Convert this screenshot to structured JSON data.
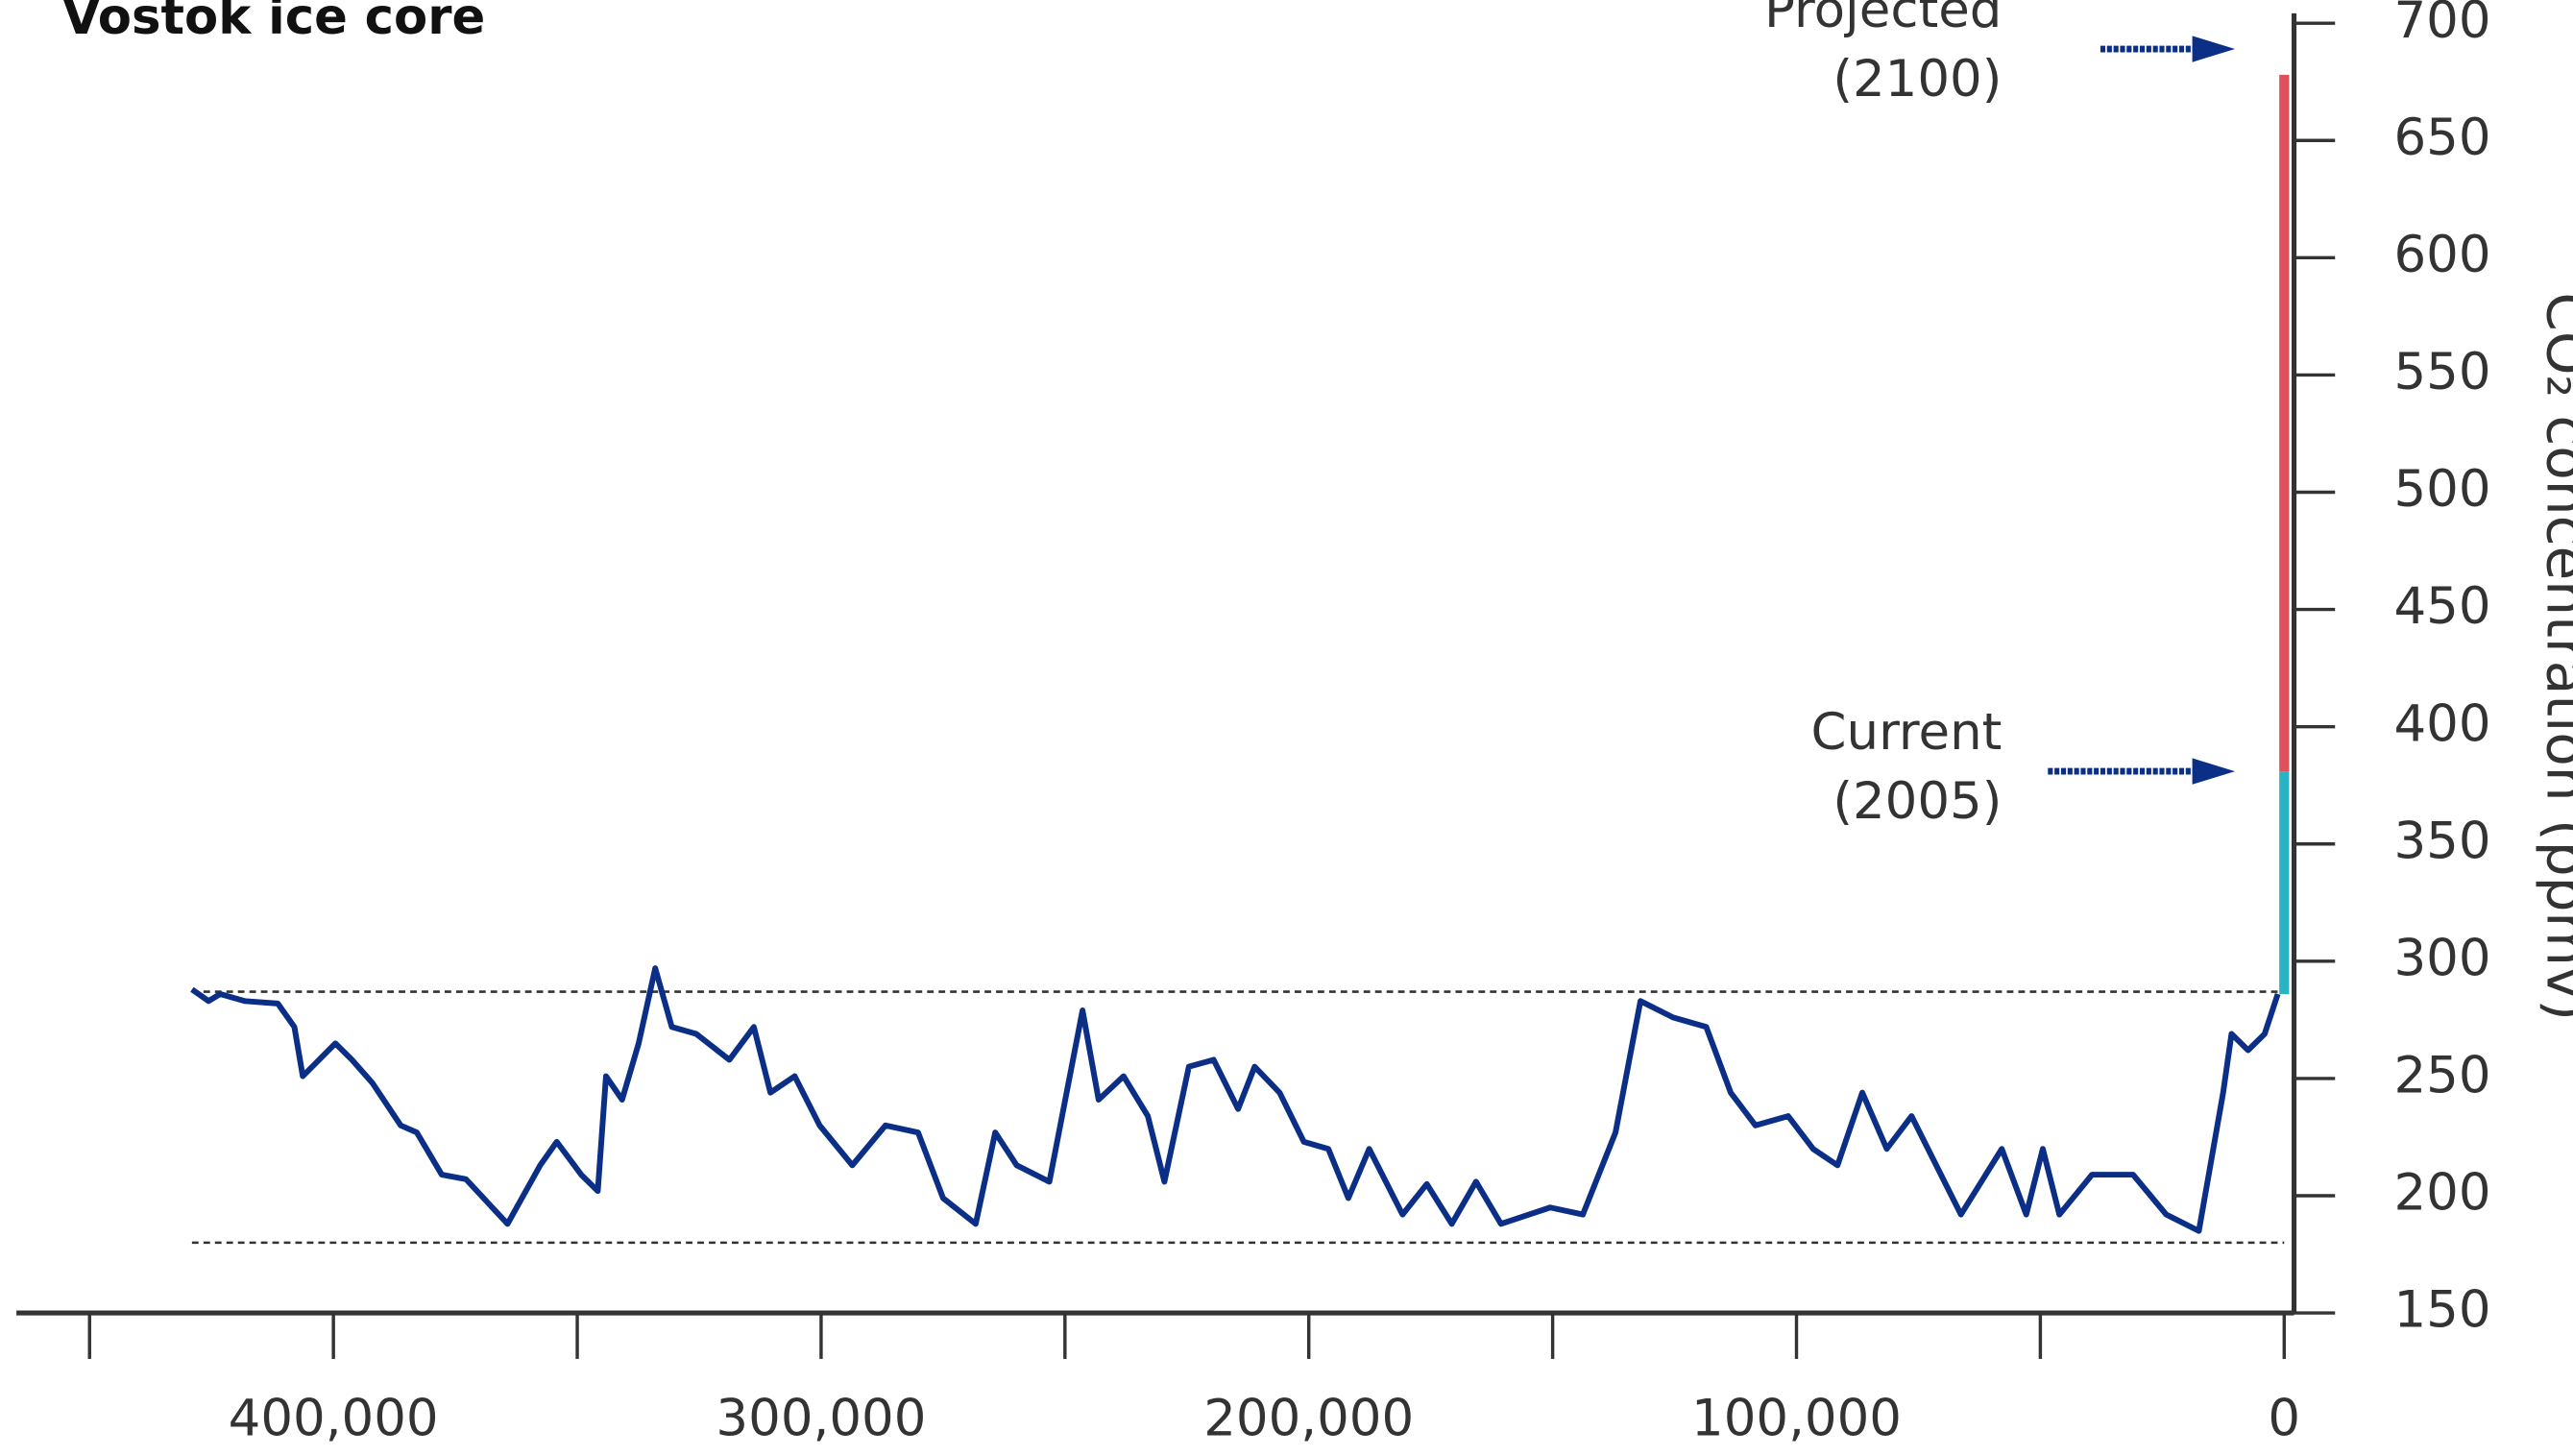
{
  "chart_data": {
    "type": "line",
    "title": "Vostok ice core",
    "y_label": "CO₂ concentration (ppmv)",
    "xlim": [
      465000,
      0
    ],
    "xticks": [
      {
        "value": 400000,
        "label": "400,000"
      },
      {
        "value": 300000,
        "label": "300,000"
      },
      {
        "value": 200000,
        "label": "200,000"
      },
      {
        "value": 100000,
        "label": "100,000"
      },
      0
    ],
    "xminor_ticks": [
      450000,
      350000,
      250000,
      150000,
      50000
    ],
    "ylim": [
      150,
      700
    ],
    "yticks": [
      150,
      200,
      250,
      300,
      350,
      400,
      450,
      500,
      550,
      600,
      650,
      700
    ],
    "reference_lines": [
      {
        "value": 287,
        "x": [
          429000,
          0
        ]
      },
      {
        "value": 180,
        "x": [
          429000,
          0
        ]
      }
    ],
    "series": [
      {
        "color": "#0b2f86",
        "x": [
          429000,
          425600,
          423200,
          418200,
          411400,
          408000,
          406300,
          399600,
          396200,
          392000,
          386200,
          382900,
          377800,
          372800,
          364300,
          357600,
          354200,
          349200,
          345800,
          344100,
          340800,
          337400,
          334000,
          330600,
          325600,
          318800,
          313800,
          310400,
          305400,
          300300,
          293600,
          286800,
          280100,
          275000,
          268300,
          264300,
          259900,
          253200,
          246400,
          243100,
          238000,
          233000,
          229600,
          224600,
          219500,
          214500,
          211100,
          206000,
          201000,
          196000,
          191900,
          187600,
          180800,
          175800,
          170700,
          165700,
          160600,
          150500,
          143800,
          137100,
          132000,
          125300,
          118500,
          113500,
          108400,
          101700,
          96600,
          91600,
          86500,
          81500,
          76400,
          66300,
          57900,
          52900,
          49500,
          46100,
          39400,
          31000,
          24200,
          17500,
          12500,
          10800,
          7400,
          4000,
          1300
        ],
        "values": [
          288,
          283,
          286,
          283,
          282,
          272,
          251,
          265,
          258,
          248,
          230,
          227,
          209,
          207,
          188,
          213,
          223,
          209,
          202,
          251,
          241,
          265,
          297,
          272,
          269,
          258,
          272,
          244,
          251,
          230,
          213,
          230,
          227,
          199,
          188,
          227,
          213,
          206,
          279,
          241,
          251,
          234,
          206,
          255,
          258,
          237,
          255,
          244,
          223,
          220,
          199,
          220,
          192,
          205,
          188,
          206,
          188,
          195,
          192,
          227,
          283,
          276,
          272,
          244,
          230,
          234,
          220,
          213,
          244,
          220,
          234,
          192,
          220,
          192,
          220,
          192,
          209,
          209,
          192,
          185,
          244,
          269,
          262,
          269,
          286
        ]
      },
      {
        "color": "#2ab3c4",
        "x": [
          0,
          0
        ],
        "values": [
          286,
          381
        ]
      },
      {
        "color": "#e0525a",
        "x": [
          0,
          0
        ],
        "values": [
          381,
          678
        ]
      }
    ],
    "annotations": [
      {
        "text": [
          "Projected",
          "(2100)"
        ],
        "value": 689
      },
      {
        "text": [
          "Current",
          "(2005)"
        ],
        "value": 381
      }
    ]
  }
}
